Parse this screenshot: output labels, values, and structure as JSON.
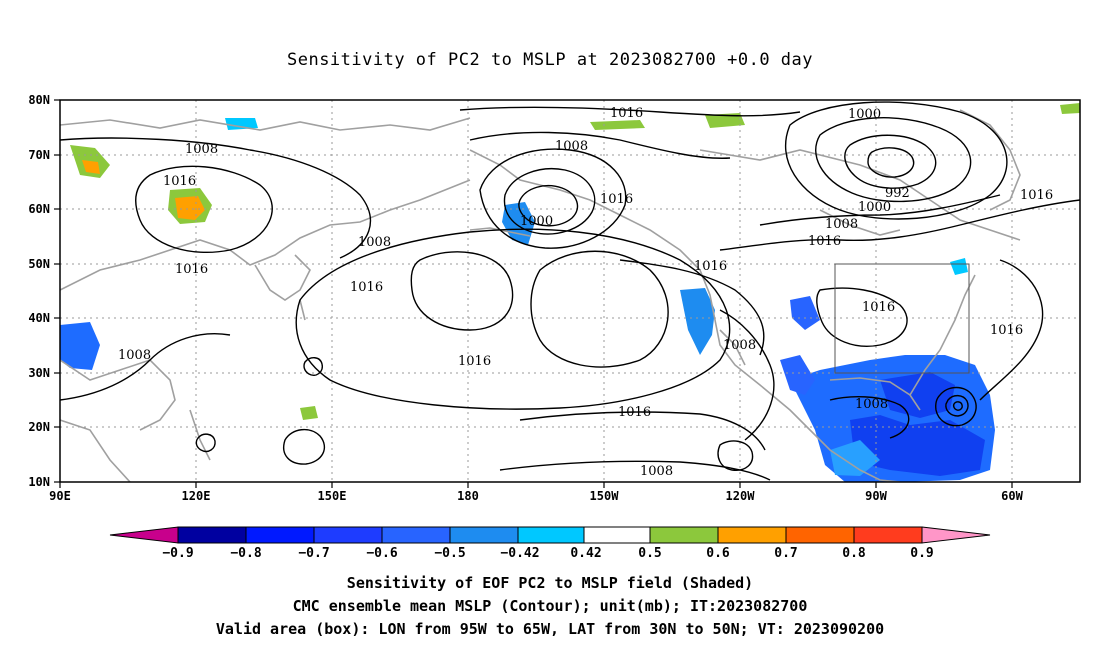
{
  "title": "Sensitivity of PC2 to MSLP at 2023082700 +0.0 day",
  "map": {
    "lat_labels": [
      "80N",
      "70N",
      "60N",
      "50N",
      "40N",
      "30N",
      "20N",
      "10N"
    ],
    "lon_labels": [
      "90E",
      "120E",
      "150E",
      "180",
      "150W",
      "120W",
      "90W",
      "60W"
    ],
    "valid_box": {
      "lon_from": "95W",
      "lon_to": "65W",
      "lat_from": "30N",
      "lat_to": "50N"
    },
    "contour_labels": [
      "1016",
      "1008",
      "1016",
      "1016",
      "1008",
      "1000",
      "1016",
      "1000",
      "992",
      "1000",
      "1008",
      "1016",
      "1016",
      "1008",
      "1016",
      "1016",
      "1016",
      "1016",
      "1008",
      "1016",
      "1008",
      "1008",
      "1016"
    ],
    "colors": {
      "coast": "#a0a0a0",
      "contour": "#000000",
      "grid": "#9a9a9a"
    }
  },
  "colorbar": {
    "labels": [
      "−0.9",
      "−0.8",
      "−0.7",
      "−0.6",
      "−0.5",
      "−0.42",
      "0.42",
      "0.5",
      "0.6",
      "0.7",
      "0.8",
      "0.9"
    ],
    "colors": [
      "#c8008c",
      "#0000a0",
      "#0019ff",
      "#1e3cff",
      "#2864ff",
      "#1e8cf0",
      "#00c8ff",
      "#ffffff",
      "#8cc83c",
      "#ffa000",
      "#ff6400",
      "#ff3c1e",
      "#ff0000",
      "#ff96c8"
    ]
  },
  "captions": [
    "Sensitivity of EOF PC2 to MSLP field (Shaded)",
    "CMC ensemble mean MSLP (Contour); unit(mb); IT:2023082700",
    "Valid area (box): LON from 95W to 65W, LAT from 30N to 50N; VT: 2023090200"
  ]
}
